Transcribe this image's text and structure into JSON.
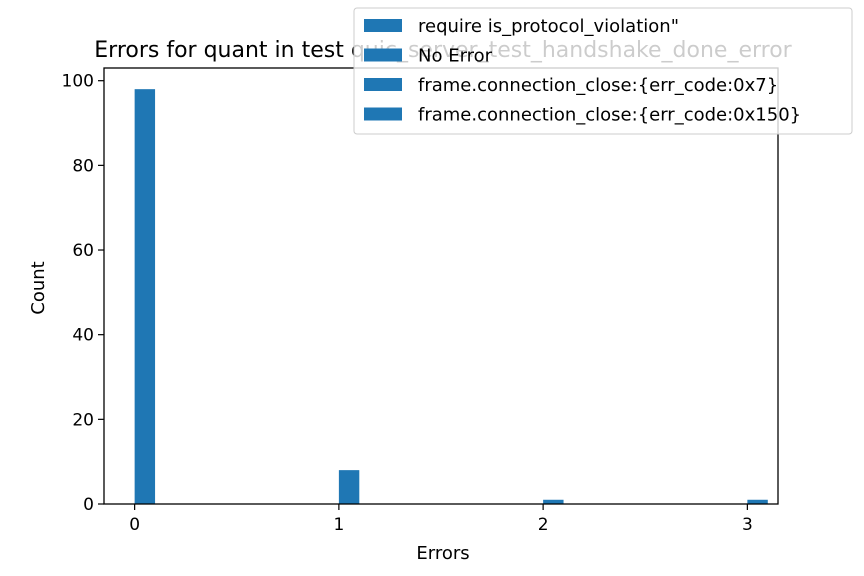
{
  "chart_data": {
    "type": "bar",
    "title": "Errors for quant in test quic_server_test_handshake_done_error",
    "xlabel": "Errors",
    "ylabel": "Count",
    "categories": [
      "0",
      "1",
      "2",
      "3"
    ],
    "xticks": [
      "0",
      "1",
      "2",
      "3"
    ],
    "yticks": [
      "0",
      "20",
      "40",
      "60",
      "80",
      "100"
    ],
    "xlim": [
      -0.15,
      3.15
    ],
    "ylim": [
      0,
      103
    ],
    "series": [
      {
        "name": "require is_protocol_violation\"",
        "values": [
          98,
          0,
          0,
          0
        ]
      },
      {
        "name": "No Error",
        "values": [
          0,
          8,
          0,
          0
        ]
      },
      {
        "name": "frame.connection_close:{err_code:0x7}",
        "values": [
          0,
          0,
          1,
          0
        ]
      },
      {
        "name": "frame.connection_close:{err_code:0x150}",
        "values": [
          0,
          0,
          0,
          1
        ]
      }
    ],
    "values": [
      98,
      8,
      1,
      1
    ],
    "bar_color": "#1f77b4",
    "grid": false,
    "legend": "top-right"
  }
}
